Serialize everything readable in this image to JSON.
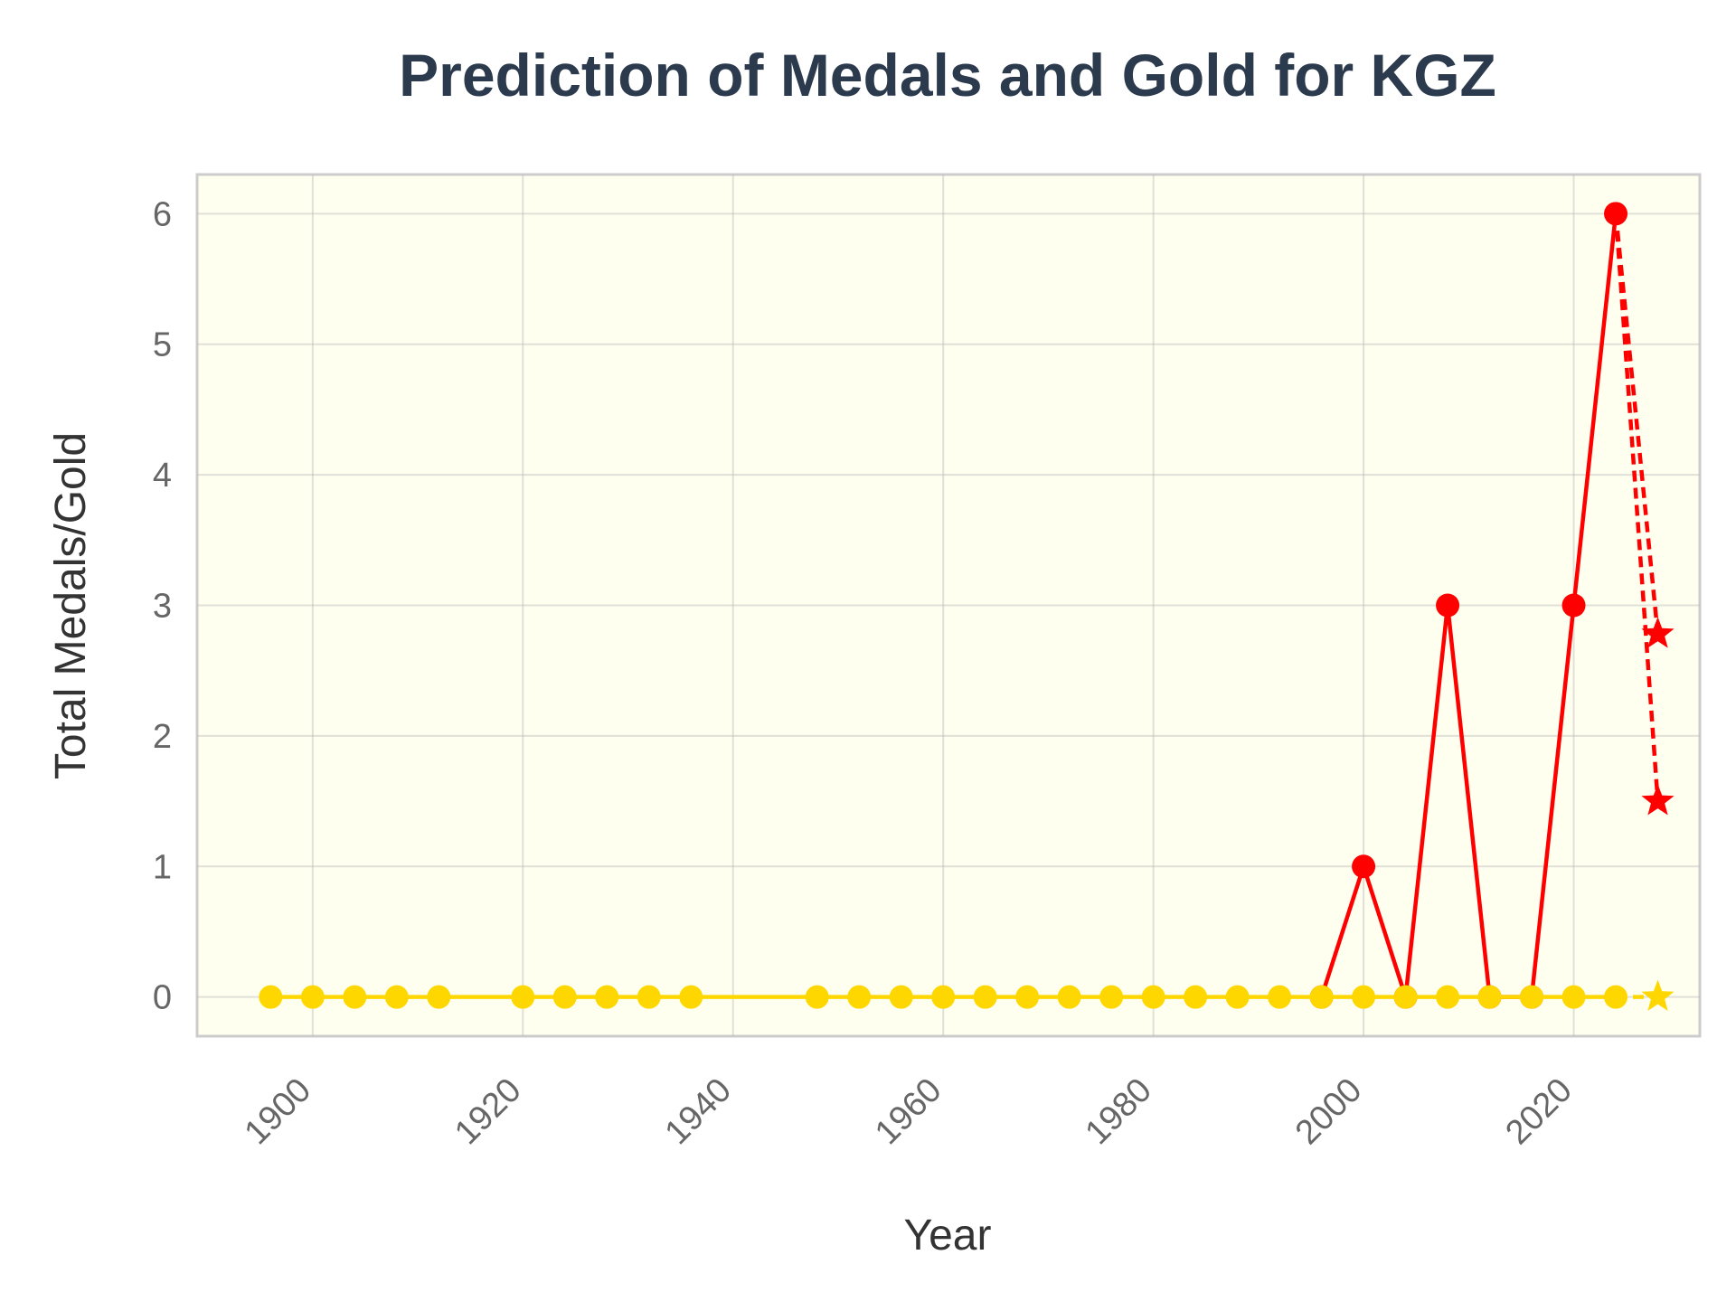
{
  "chart_data": {
    "type": "line",
    "title": "Prediction of Medals and Gold for KGZ",
    "xlabel": "Year",
    "ylabel": "Total Medals/Gold",
    "xlim": [
      1889,
      2032
    ],
    "ylim": [
      -0.3,
      6.3
    ],
    "xticks": [
      1900,
      1920,
      1940,
      1960,
      1980,
      2000,
      2020
    ],
    "yticks": [
      0,
      1,
      2,
      3,
      4,
      5,
      6
    ],
    "grid": true,
    "background": "#fffff0",
    "series": [
      {
        "role": "total-medals",
        "color": "#ff0000",
        "marker": "circle",
        "style": "solid",
        "x": [
          1996,
          2000,
          2004,
          2008,
          2012,
          2016,
          2020,
          2024
        ],
        "y": [
          0,
          1,
          0,
          3,
          0,
          0,
          3,
          6
        ]
      },
      {
        "role": "gold-medals",
        "color": "#ffd700",
        "marker": "circle",
        "style": "solid",
        "x": [
          1896,
          1900,
          1904,
          1908,
          1912,
          1920,
          1924,
          1928,
          1932,
          1936,
          1948,
          1952,
          1956,
          1960,
          1964,
          1968,
          1972,
          1976,
          1980,
          1984,
          1988,
          1992,
          1996,
          2000,
          2004,
          2008,
          2012,
          2016,
          2020,
          2024
        ],
        "y": [
          0,
          0,
          0,
          0,
          0,
          0,
          0,
          0,
          0,
          0,
          0,
          0,
          0,
          0,
          0,
          0,
          0,
          0,
          0,
          0,
          0,
          0,
          0,
          0,
          0,
          0,
          0,
          0,
          0,
          0
        ]
      },
      {
        "role": "predicted-total-high",
        "color": "#ff0000",
        "marker": "star",
        "style": "dashed",
        "x": [
          2024,
          2028
        ],
        "y": [
          6,
          2.78
        ]
      },
      {
        "role": "predicted-total-low",
        "color": "#ff0000",
        "marker": "star",
        "style": "dashed",
        "x": [
          2024,
          2028
        ],
        "y": [
          6,
          1.5
        ]
      },
      {
        "role": "predicted-gold",
        "color": "#ffd700",
        "marker": "star",
        "style": "dashed",
        "x": [
          2024,
          2028
        ],
        "y": [
          0,
          0
        ]
      }
    ]
  }
}
